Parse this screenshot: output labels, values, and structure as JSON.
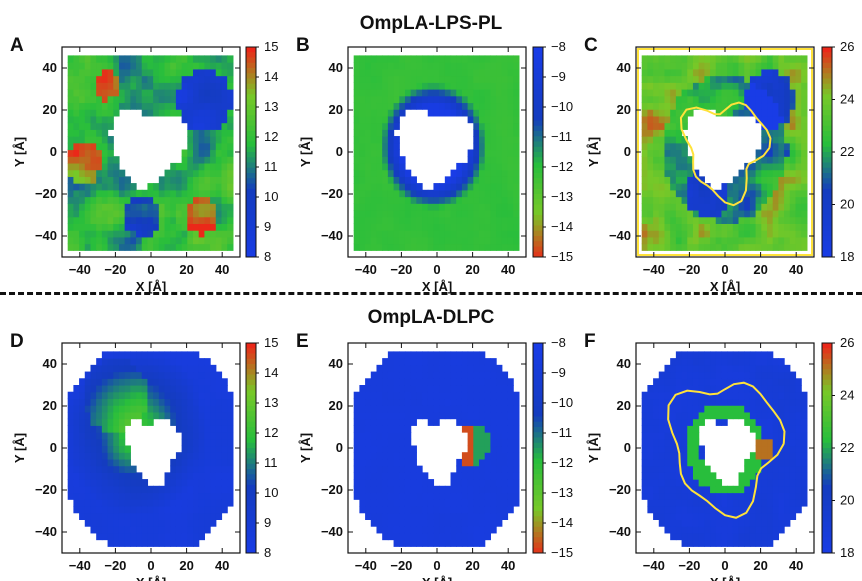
{
  "sections": {
    "top_title": "OmpLA-LPS-PL",
    "bottom_title": "OmpLA-DLPC"
  },
  "chart_data": [
    {
      "type": "heatmap",
      "panel_letter": "A",
      "section": "OmpLA-LPS-PL",
      "xlabel": "X [Å]",
      "ylabel": "Y [Å]",
      "xticks": [
        -40,
        -20,
        0,
        20,
        40
      ],
      "yticks": [
        -40,
        -20,
        0,
        20,
        40
      ],
      "xlim": [
        -50,
        50
      ],
      "ylim": [
        -50,
        50
      ],
      "colorbar": {
        "min": 8,
        "max": 15,
        "ticks": [
          15,
          14,
          13,
          12,
          11,
          10,
          9,
          8
        ],
        "palette": "blue-green-red"
      },
      "hole": {
        "center": [
          0,
          3
        ],
        "shape": "irregular polygon"
      },
      "pattern": "mixed green field with blue patches upper-right and lower-center, red patches left, lower-right and lower-left"
    },
    {
      "type": "heatmap",
      "panel_letter": "B",
      "section": "OmpLA-LPS-PL",
      "xlabel": "X [Å]",
      "ylabel": "Y [Å]",
      "xticks": [
        -40,
        -20,
        0,
        20,
        40
      ],
      "yticks": [
        -40,
        -20,
        0,
        20,
        40
      ],
      "xlim": [
        -50,
        50
      ],
      "ylim": [
        -50,
        50
      ],
      "colorbar": {
        "min": -15,
        "max": -8,
        "ticks": [
          "−8",
          "−9",
          "−10",
          "−11",
          "−12",
          "−13",
          "−14",
          "−15"
        ],
        "palette": "red-green-blue"
      },
      "pattern": "olive/green background, blue ring around central hole"
    },
    {
      "type": "heatmap",
      "panel_letter": "C",
      "section": "OmpLA-LPS-PL",
      "xlabel": "X [Å]",
      "ylabel": "Y [Å]",
      "xticks": [
        -40,
        -20,
        0,
        20,
        40
      ],
      "yticks": [
        -40,
        -20,
        0,
        20,
        40
      ],
      "xlim": [
        -50,
        50
      ],
      "ylim": [
        -50,
        50
      ],
      "colorbar": {
        "min": 18,
        "max": 26,
        "ticks": [
          26,
          24,
          22,
          20,
          18
        ],
        "palette": "blue-green-red"
      },
      "contour": "yellow",
      "pattern": "mostly red periphery, green mid-band, blue near upper-right, yellow contour around hole"
    },
    {
      "type": "heatmap",
      "panel_letter": "D",
      "section": "OmpLA-DLPC",
      "xlabel": "X [Å]",
      "ylabel": "Y [Å]",
      "xticks": [
        -40,
        -20,
        0,
        20,
        40
      ],
      "yticks": [
        -40,
        -20,
        0,
        20,
        40
      ],
      "xlim": [
        -50,
        50
      ],
      "ylim": [
        -50,
        50
      ],
      "colorbar": {
        "min": 8,
        "max": 15,
        "ticks": [
          15,
          14,
          13,
          12,
          11,
          10,
          9,
          8
        ],
        "palette": "blue-green-red"
      },
      "pattern": "blue field with green halo around central hole extending to upper-left"
    },
    {
      "type": "heatmap",
      "panel_letter": "E",
      "section": "OmpLA-DLPC",
      "xlabel": "X [Å]",
      "ylabel": "Y [Å]",
      "xticks": [
        -40,
        -20,
        0,
        20,
        40
      ],
      "yticks": [
        -40,
        -20,
        0,
        20,
        40
      ],
      "xlim": [
        -50,
        50
      ],
      "ylim": [
        -50,
        50
      ],
      "colorbar": {
        "min": -15,
        "max": -8,
        "ticks": [
          "−8",
          "−9",
          "−10",
          "−11",
          "−12",
          "−13",
          "−14",
          "−15"
        ],
        "palette": "red-green-blue"
      },
      "pattern": "blue field, red and green crescent on right edge of central hole"
    },
    {
      "type": "heatmap",
      "panel_letter": "F",
      "section": "OmpLA-DLPC",
      "xlabel": "X [Å]",
      "ylabel": "Y [Å]",
      "xticks": [
        -40,
        -20,
        0,
        20,
        40
      ],
      "yticks": [
        -40,
        -20,
        0,
        20,
        40
      ],
      "xlim": [
        -50,
        50
      ],
      "ylim": [
        -50,
        50
      ],
      "colorbar": {
        "min": 18,
        "max": 26,
        "ticks": [
          26,
          24,
          22,
          20,
          18
        ],
        "palette": "blue-green-red"
      },
      "contour": "yellow",
      "pattern": "blue field with yellow contour loops and green ring around hole"
    }
  ],
  "colors": {
    "blue": "#1f3fe0",
    "green": "#2fc43a",
    "red": "#f02418",
    "yellow": "#ffe23a",
    "olive": "#7fa53a"
  }
}
